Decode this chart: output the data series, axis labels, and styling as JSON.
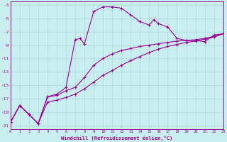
{
  "xlabel": "Windchill (Refroidissement éolien,°C)",
  "bg_color": "#c8eef0",
  "line_color": "#990099",
  "grid_color": "#b0d8da",
  "curve1_x": [
    0,
    1,
    2,
    3,
    4,
    5,
    6,
    7,
    7.5,
    8,
    9,
    10,
    11,
    12,
    13,
    14,
    15,
    15.5,
    16,
    17,
    18,
    19,
    20,
    21,
    22,
    23
  ],
  "curve1_y": [
    -20.5,
    -18.0,
    -19.3,
    -20.7,
    -16.7,
    -16.3,
    -15.3,
    -8.2,
    -8.0,
    -8.8,
    -4.0,
    -3.3,
    -3.3,
    -3.5,
    -4.5,
    -5.5,
    -6.0,
    -5.2,
    -5.8,
    -6.3,
    -8.0,
    -8.3,
    -8.3,
    -8.5,
    -7.5,
    -7.3
  ],
  "curve2_x": [
    0,
    1,
    2,
    3,
    4,
    5,
    6,
    7,
    8,
    9,
    10,
    11,
    12,
    13,
    14,
    15,
    16,
    17,
    18,
    19,
    20,
    21,
    22,
    23
  ],
  "curve2_y": [
    -20.5,
    -18.0,
    -19.3,
    -20.7,
    -16.7,
    -16.5,
    -15.8,
    -15.3,
    -13.8,
    -12.0,
    -11.0,
    -10.3,
    -9.8,
    -9.5,
    -9.2,
    -9.0,
    -8.8,
    -8.6,
    -8.4,
    -8.3,
    -8.2,
    -8.0,
    -7.7,
    -7.3
  ],
  "curve3_x": [
    0,
    1,
    2,
    3,
    4,
    5,
    6,
    7,
    8,
    9,
    10,
    11,
    12,
    13,
    14,
    15,
    16,
    17,
    18,
    19,
    20,
    21,
    22,
    23
  ],
  "curve3_y": [
    -20.5,
    -18.0,
    -19.3,
    -20.7,
    -17.5,
    -17.2,
    -16.8,
    -16.3,
    -15.5,
    -14.5,
    -13.5,
    -12.8,
    -12.0,
    -11.3,
    -10.7,
    -10.1,
    -9.6,
    -9.2,
    -8.9,
    -8.6,
    -8.4,
    -8.1,
    -7.8,
    -7.3
  ],
  "xlim": [
    0,
    23
  ],
  "ylim": [
    -21.5,
    -2.5
  ],
  "yticks": [
    -3,
    -5,
    -7,
    -9,
    -11,
    -13,
    -15,
    -17,
    -19,
    -21
  ],
  "xticks": [
    0,
    1,
    2,
    3,
    4,
    5,
    6,
    7,
    8,
    9,
    10,
    11,
    12,
    13,
    14,
    15,
    16,
    17,
    18,
    19,
    20,
    21,
    22,
    23
  ]
}
